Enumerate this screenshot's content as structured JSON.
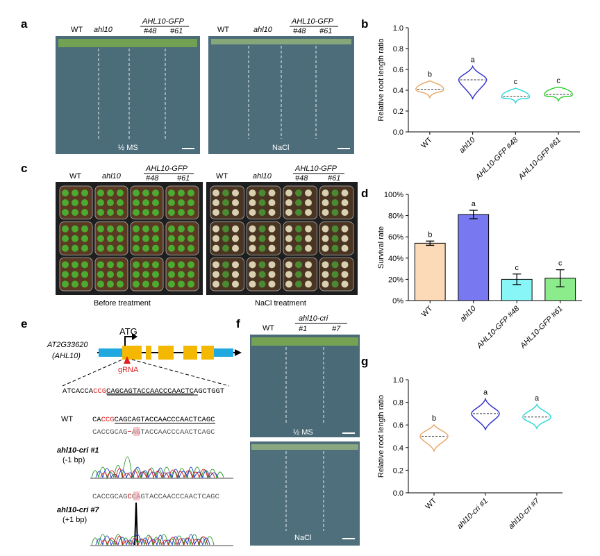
{
  "panel_letters": {
    "a": "a",
    "b": "b",
    "c": "c",
    "d": "d",
    "e": "e",
    "f": "f",
    "g": "g"
  },
  "panel_a": {
    "left": {
      "wt": "WT",
      "ahl10": "ahl10",
      "gfp": "AHL10-GFP",
      "l48": "#48",
      "l61": "#61",
      "medium": "½ MS"
    },
    "right": {
      "wt": "WT",
      "ahl10": "ahl10",
      "gfp": "AHL10-GFP",
      "l48": "#48",
      "l61": "#61",
      "medium": "NaCl"
    }
  },
  "panel_c": {
    "left": {
      "wt": "WT",
      "ahl10": "ahl10",
      "gfp": "AHL10-GFP",
      "l48": "#48",
      "l61": "#61",
      "caption": "Before treatment"
    },
    "right": {
      "wt": "WT",
      "ahl10": "ahl10",
      "gfp": "AHL10-GFP",
      "l48": "#48",
      "l61": "#61",
      "caption": "NaCl treatment"
    }
  },
  "panel_e": {
    "gene": "AT2G33620",
    "alias": "(AHL10)",
    "atg": "ATG",
    "grna": "gRNA",
    "seq_pre": "ATCACCA",
    "seq_pam": "CCG",
    "seq_target": "CAGCAGTACCAACCCAACTC",
    "seq_post": "AGCTGGT",
    "wt_label": "WT",
    "wt_pre": "CA",
    "wt_pam": "CCG",
    "wt_target": "CAGCAGTACCAACCCAACTC",
    "wt_post": "AGC",
    "cri1": "ahl10-cri #1",
    "cri1_note": "(-1 bp)",
    "cri1_pre": "CACCGCAG",
    "cri1_box": "−",
    "cri1_post": "AGTACCAACCCAACTCAGC",
    "cri7": "ahl10-cri #7",
    "cri7_note": "(+1 bp)",
    "cri7_pre": "CACCGCAG",
    "cri7_box": "C",
    "cri7_post": "CAGTACCAACCCAACTCAGC"
  },
  "panel_f": {
    "wt": "WT",
    "cri": "ahl10-cri",
    "l1": "#1",
    "l7": "#7",
    "top": "½ MS",
    "bottom": "NaCl"
  },
  "chart_data": [
    {
      "type": "violin",
      "ylabel": "Relative root length ratio",
      "categories": [
        "WT",
        "ahl10",
        "AHL10-GFP #48",
        "AHL10-GFP #61"
      ],
      "medians": [
        0.41,
        0.5,
        0.34,
        0.36
      ],
      "mins": [
        0.33,
        0.32,
        0.28,
        0.3
      ],
      "maxs": [
        0.49,
        0.63,
        0.42,
        0.43
      ],
      "colors": [
        "#e8a868",
        "#3535d0",
        "#30d8d8",
        "#30d030"
      ],
      "annotations": [
        "b",
        "a",
        "c",
        "c"
      ],
      "ylim": [
        0,
        1
      ],
      "yticks": [
        {
          "value": 0,
          "label": "0.0"
        },
        {
          "value": 0.2,
          "label": "0.2"
        },
        {
          "value": 0.4,
          "label": "0.4"
        },
        {
          "value": 0.6,
          "label": "0.6"
        },
        {
          "value": 0.8,
          "label": "0.8"
        },
        {
          "value": 1,
          "label": "1.0"
        }
      ]
    },
    {
      "type": "bar",
      "ylabel": "Survival rate",
      "categories": [
        "WT",
        "ahl10",
        "AHL10-GFP #48",
        "AHL10-GFP #61"
      ],
      "values": [
        54,
        81,
        20,
        21
      ],
      "errors": [
        2,
        4,
        5,
        8
      ],
      "colors": [
        "#fcdab8",
        "#7878f0",
        "#88f6f6",
        "#8cec8c"
      ],
      "annotations": [
        "b",
        "a",
        "c",
        "c"
      ],
      "ylim": [
        0,
        100
      ],
      "yticks": [
        {
          "value": 0,
          "label": "0%"
        },
        {
          "value": 20,
          "label": "20%"
        },
        {
          "value": 40,
          "label": "40%"
        },
        {
          "value": 60,
          "label": "60%"
        },
        {
          "value": 80,
          "label": "80%"
        },
        {
          "value": 100,
          "label": "100%"
        }
      ]
    },
    {
      "type": "violin",
      "ylabel": "Relative root length ratio",
      "categories": [
        "WT",
        "ahl10-cri #1",
        "ahl10-cri #7"
      ],
      "medians": [
        0.5,
        0.7,
        0.67
      ],
      "mins": [
        0.37,
        0.56,
        0.57
      ],
      "maxs": [
        0.6,
        0.83,
        0.78
      ],
      "colors": [
        "#e8a868",
        "#3535d0",
        "#30d8d8"
      ],
      "annotations": [
        "b",
        "a",
        "a"
      ],
      "ylim": [
        0,
        1
      ],
      "yticks": [
        {
          "value": 0,
          "label": "0.0"
        },
        {
          "value": 0.2,
          "label": "0.2"
        },
        {
          "value": 0.4,
          "label": "0.4"
        },
        {
          "value": 0.6,
          "label": "0.6"
        },
        {
          "value": 0.8,
          "label": "0.8"
        },
        {
          "value": 1,
          "label": "1.0"
        }
      ]
    }
  ]
}
